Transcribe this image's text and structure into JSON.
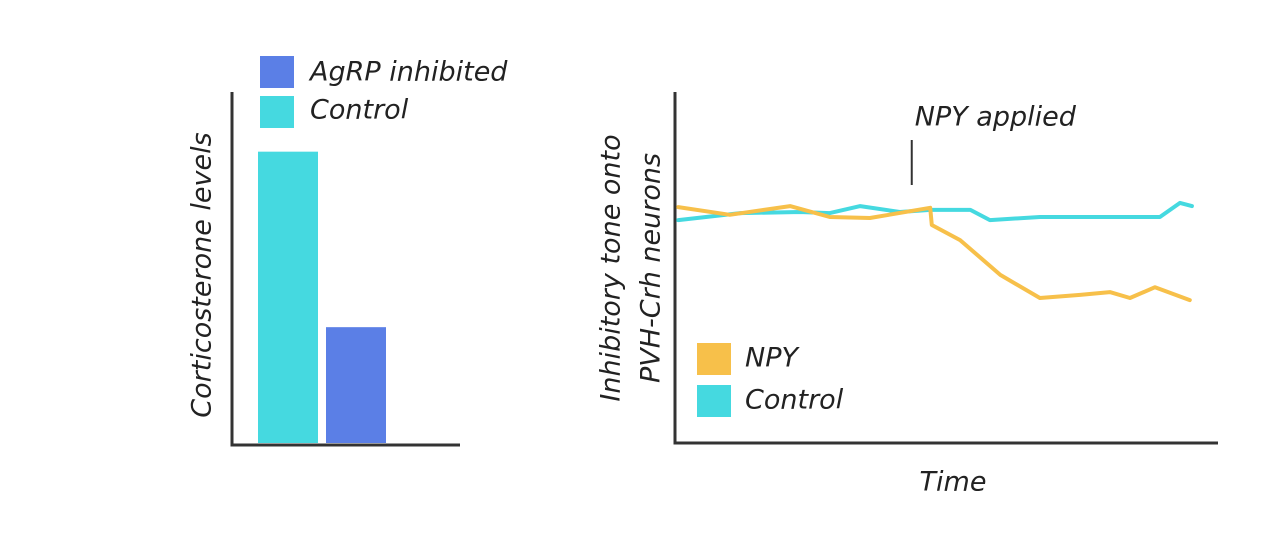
{
  "chart_data": [
    {
      "type": "bar",
      "ylabel": "Corticosterone levels",
      "ylim": [
        0,
        100
      ],
      "series": [
        {
          "name": "AgRP inhibited",
          "color": "#5b7fe6",
          "values": [
            33
          ]
        },
        {
          "name": "Control",
          "color": "#45d9e0",
          "values": [
            83
          ]
        }
      ]
    },
    {
      "type": "line",
      "xlabel": "Time",
      "ylabel": [
        "Inhibitory tone onto",
        "PVH-Crh neurons"
      ],
      "xlim": [
        0,
        100
      ],
      "ylim": [
        0,
        100
      ],
      "annotation": {
        "text": "NPY applied",
        "x": 43.6
      },
      "series": [
        {
          "name": "NPY",
          "color": "#f7c04a",
          "x": [
            0.6,
            10.1,
            21.2,
            28.5,
            35.9,
            47.0,
            47.3,
            52.5,
            59.9,
            67.2,
            74.6,
            80.1,
            83.8,
            88.4,
            94.8
          ],
          "values": [
            67.2,
            65.0,
            67.5,
            64.4,
            64.1,
            67.0,
            62.1,
            57.8,
            47.9,
            41.3,
            42.2,
            43.0,
            41.3,
            44.4,
            40.7
          ]
        },
        {
          "name": "Control",
          "color": "#45d9e0",
          "x": [
            0.6,
            12.0,
            23.0,
            28.5,
            34.1,
            41.4,
            47.0,
            54.4,
            58.0,
            67.2,
            78.3,
            89.3,
            93.0,
            95.2
          ],
          "values": [
            63.5,
            65.5,
            65.8,
            65.5,
            67.5,
            65.8,
            66.4,
            66.4,
            63.5,
            64.4,
            64.4,
            64.4,
            68.4,
            67.5
          ]
        }
      ]
    }
  ]
}
